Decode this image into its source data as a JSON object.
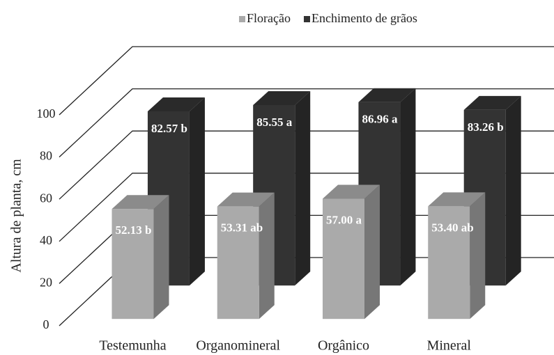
{
  "chart_data": {
    "type": "bar3d",
    "y_label": "Altura de planta, cm",
    "categories": [
      "Testemunha",
      "Organomineral",
      "Orgânico",
      "Mineral"
    ],
    "series": [
      {
        "name": "Floração",
        "color": "#aaaaaa",
        "values": [
          52.13,
          53.31,
          57.0,
          53.4
        ],
        "value_labels": [
          "52.13 b",
          "53.31 ab",
          "57.00 a",
          "53.40 ab"
        ]
      },
      {
        "name": "Enchimento de grãos",
        "color": "#333333",
        "values": [
          82.57,
          85.55,
          86.96,
          83.26
        ],
        "value_labels": [
          "82.57 b",
          "85.55 a",
          "86.96 a",
          "83.26 b"
        ]
      }
    ],
    "ylim": [
      0,
      100
    ],
    "yticks": [
      0,
      20,
      40,
      60,
      80,
      100
    ],
    "grid": true,
    "legend": "top"
  }
}
